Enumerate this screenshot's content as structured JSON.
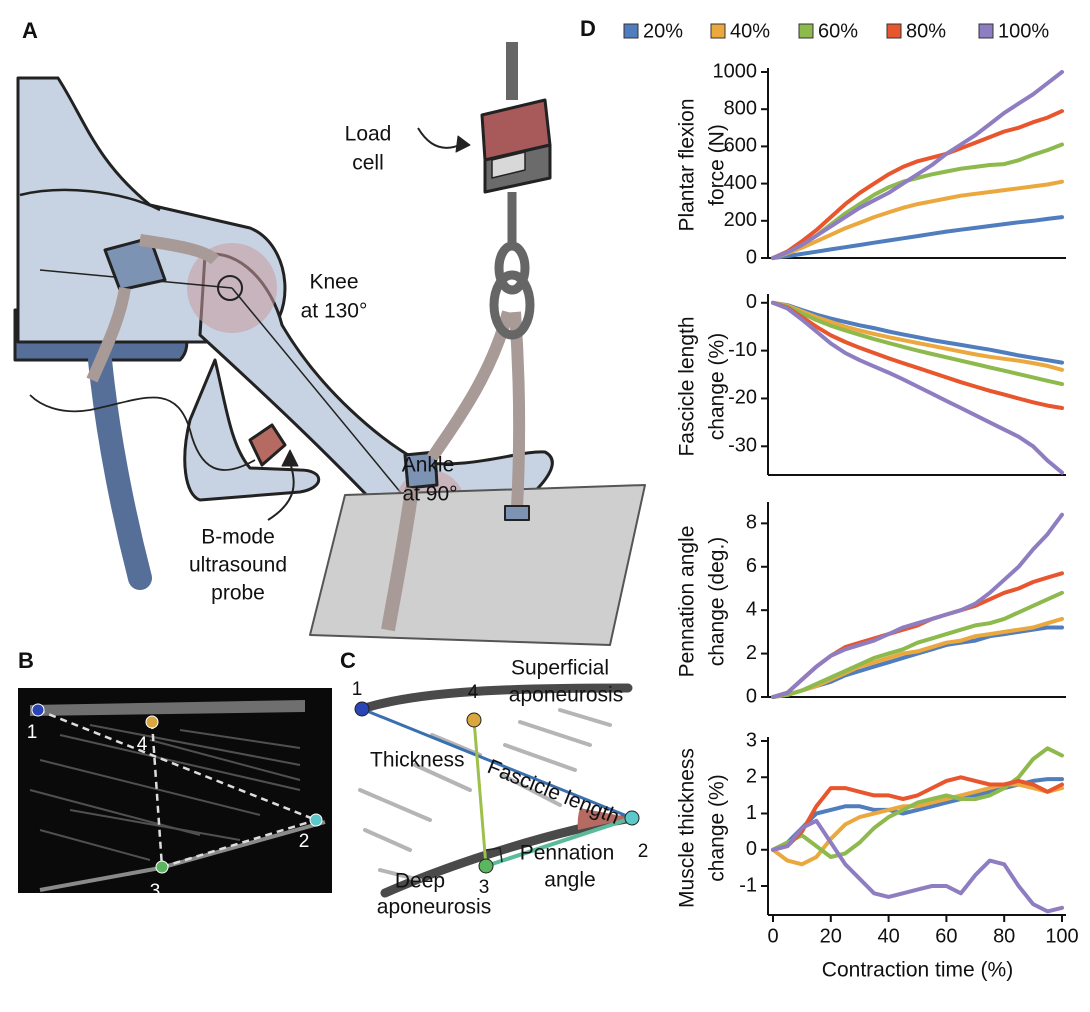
{
  "panel_labels": [
    "A",
    "B",
    "C",
    "D"
  ],
  "panel_a": {
    "load_cell": [
      "Load",
      "cell"
    ],
    "knee": [
      "Knee",
      "at 130°"
    ],
    "ankle": [
      "Ankle",
      "at 90°"
    ],
    "probe": [
      "B-mode",
      "ultrasound",
      "probe"
    ]
  },
  "panel_b": {
    "points": [
      "1",
      "2",
      "3",
      "4"
    ]
  },
  "panel_c": {
    "points": [
      "1",
      "2",
      "3",
      "4"
    ],
    "superficial": [
      "Superficial",
      "aponeurosis"
    ],
    "thickness": "Thickness",
    "fascicle": "Fascicle length",
    "pennation": [
      "Pennation",
      "angle"
    ],
    "deep": [
      "Deep",
      "aponeurosis"
    ]
  },
  "chart_data": [
    {
      "type": "line",
      "ylabel": [
        "Plantar flexion",
        "force (N)"
      ],
      "x": [
        0,
        5,
        10,
        15,
        20,
        25,
        30,
        35,
        40,
        45,
        50,
        55,
        60,
        65,
        70,
        75,
        80,
        85,
        90,
        95,
        100
      ],
      "xlim": [
        0,
        100
      ],
      "ylim": [
        0,
        1000
      ],
      "yticks": [
        0,
        200,
        400,
        600,
        800,
        1000
      ],
      "series": [
        {
          "name": "20%",
          "color": "#4f7dbd",
          "values": [
            0,
            10,
            22,
            34,
            46,
            58,
            70,
            82,
            94,
            106,
            118,
            130,
            142,
            152,
            162,
            172,
            182,
            192,
            200,
            210,
            220
          ]
        },
        {
          "name": "40%",
          "color": "#eaa83f",
          "values": [
            0,
            25,
            55,
            90,
            125,
            160,
            190,
            220,
            245,
            270,
            290,
            305,
            320,
            335,
            345,
            355,
            365,
            375,
            385,
            395,
            410
          ]
        },
        {
          "name": "60%",
          "color": "#8db94d",
          "values": [
            0,
            30,
            70,
            120,
            180,
            240,
            290,
            340,
            380,
            410,
            430,
            450,
            465,
            480,
            490,
            500,
            505,
            525,
            555,
            580,
            610
          ]
        },
        {
          "name": "80%",
          "color": "#e8562e",
          "values": [
            0,
            35,
            90,
            150,
            220,
            290,
            350,
            400,
            450,
            490,
            520,
            540,
            560,
            590,
            620,
            650,
            680,
            700,
            730,
            755,
            790
          ]
        },
        {
          "name": "100%",
          "color": "#8f7dc2",
          "values": [
            0,
            30,
            70,
            120,
            170,
            220,
            270,
            310,
            350,
            400,
            450,
            500,
            560,
            610,
            660,
            720,
            780,
            830,
            880,
            940,
            1000
          ]
        }
      ]
    },
    {
      "type": "line",
      "ylabel": [
        "Fascicle length",
        "change (%)"
      ],
      "x": [
        0,
        5,
        10,
        15,
        20,
        25,
        30,
        35,
        40,
        45,
        50,
        55,
        60,
        65,
        70,
        75,
        80,
        85,
        90,
        95,
        100
      ],
      "xlim": [
        0,
        100
      ],
      "ylim": [
        -36,
        1
      ],
      "yticks": [
        0,
        -10,
        -20,
        -30
      ],
      "series": [
        {
          "color": "#4f7dbd",
          "values": [
            0,
            -0.5,
            -1.5,
            -2.5,
            -3.3,
            -4,
            -4.7,
            -5.3,
            -6,
            -6.6,
            -7.2,
            -7.8,
            -8.3,
            -8.8,
            -9.3,
            -9.8,
            -10.4,
            -11,
            -11.5,
            -12,
            -12.5
          ]
        },
        {
          "color": "#eaa83f",
          "values": [
            0,
            -0.6,
            -1.8,
            -3,
            -4,
            -5,
            -5.8,
            -6.5,
            -7.2,
            -7.8,
            -8.4,
            -9,
            -9.6,
            -10.2,
            -10.8,
            -11.3,
            -11.7,
            -12.1,
            -12.6,
            -13.2,
            -14
          ]
        },
        {
          "color": "#8db94d",
          "values": [
            0,
            -0.8,
            -2.2,
            -3.6,
            -4.8,
            -5.8,
            -6.7,
            -7.6,
            -8.4,
            -9.2,
            -10,
            -10.7,
            -11.4,
            -12.1,
            -12.8,
            -13.5,
            -14.2,
            -14.9,
            -15.6,
            -16.3,
            -17
          ]
        },
        {
          "color": "#e8562e",
          "values": [
            0,
            -1,
            -3,
            -5,
            -6.8,
            -8.2,
            -9.4,
            -10.5,
            -11.6,
            -12.6,
            -13.6,
            -14.6,
            -15.6,
            -16.6,
            -17.5,
            -18.4,
            -19.2,
            -20,
            -20.8,
            -21.5,
            -22
          ]
        },
        {
          "color": "#8f7dc2",
          "values": [
            0,
            -1.2,
            -3.5,
            -6,
            -8.5,
            -10.5,
            -12,
            -13.3,
            -14.6,
            -16,
            -17.5,
            -19,
            -20.5,
            -22,
            -23.5,
            -25,
            -26.5,
            -28,
            -30,
            -33,
            -35.5
          ]
        }
      ]
    },
    {
      "type": "line",
      "ylabel": [
        "Pennation angle",
        "change (deg.)"
      ],
      "x": [
        0,
        5,
        10,
        15,
        20,
        25,
        30,
        35,
        40,
        45,
        50,
        55,
        60,
        65,
        70,
        75,
        80,
        85,
        90,
        95,
        100
      ],
      "xlim": [
        0,
        100
      ],
      "ylim": [
        0,
        8.8
      ],
      "yticks": [
        0,
        2,
        4,
        6,
        8
      ],
      "series": [
        {
          "color": "#4f7dbd",
          "values": [
            0,
            0.1,
            0.3,
            0.5,
            0.7,
            1,
            1.2,
            1.4,
            1.6,
            1.8,
            2,
            2.2,
            2.4,
            2.5,
            2.6,
            2.8,
            2.9,
            3,
            3.1,
            3.2,
            3.2
          ]
        },
        {
          "color": "#eaa83f",
          "values": [
            0,
            0.1,
            0.3,
            0.5,
            0.8,
            1.1,
            1.4,
            1.6,
            1.8,
            2,
            2.1,
            2.3,
            2.5,
            2.6,
            2.8,
            2.9,
            3,
            3.1,
            3.2,
            3.4,
            3.6
          ]
        },
        {
          "color": "#8db94d",
          "values": [
            0,
            0.1,
            0.3,
            0.6,
            0.9,
            1.2,
            1.5,
            1.8,
            2,
            2.2,
            2.5,
            2.7,
            2.9,
            3.1,
            3.3,
            3.4,
            3.6,
            3.9,
            4.2,
            4.5,
            4.8
          ]
        },
        {
          "color": "#e8562e",
          "values": [
            0,
            0.2,
            0.8,
            1.4,
            1.9,
            2.3,
            2.5,
            2.7,
            2.9,
            3.1,
            3.3,
            3.6,
            3.8,
            4,
            4.2,
            4.5,
            4.8,
            5,
            5.3,
            5.5,
            5.7
          ]
        },
        {
          "color": "#8f7dc2",
          "values": [
            0,
            0.2,
            0.8,
            1.4,
            1.9,
            2.2,
            2.4,
            2.6,
            2.9,
            3.2,
            3.4,
            3.6,
            3.8,
            4,
            4.3,
            4.8,
            5.4,
            6,
            6.8,
            7.5,
            8.4
          ]
        }
      ]
    },
    {
      "type": "line",
      "ylabel": [
        "Muscle thickness",
        "change (%)"
      ],
      "xlabel": "Contraction time (%)",
      "x": [
        0,
        5,
        10,
        15,
        20,
        25,
        30,
        35,
        40,
        45,
        50,
        55,
        60,
        65,
        70,
        75,
        80,
        85,
        90,
        95,
        100
      ],
      "xlim": [
        0,
        100
      ],
      "xticks": [
        0,
        20,
        40,
        60,
        80,
        100
      ],
      "ylim": [
        -1.8,
        3
      ],
      "yticks": [
        3,
        2,
        1,
        0,
        -1
      ],
      "series": [
        {
          "color": "#4f7dbd",
          "values": [
            0,
            0.2,
            0.6,
            1,
            1.1,
            1.2,
            1.2,
            1.1,
            1.1,
            1,
            1.1,
            1.2,
            1.3,
            1.4,
            1.5,
            1.6,
            1.7,
            1.8,
            1.9,
            1.95,
            1.95
          ]
        },
        {
          "color": "#eaa83f",
          "values": [
            0,
            -0.3,
            -0.4,
            -0.2,
            0.3,
            0.7,
            0.9,
            1,
            1.1,
            1.2,
            1.2,
            1.3,
            1.4,
            1.5,
            1.6,
            1.7,
            1.8,
            1.8,
            1.7,
            1.6,
            1.7
          ]
        },
        {
          "color": "#8db94d",
          "values": [
            0,
            0.2,
            0.4,
            0.1,
            -0.2,
            -0.1,
            0.2,
            0.6,
            0.9,
            1.1,
            1.3,
            1.4,
            1.5,
            1.4,
            1.4,
            1.5,
            1.7,
            2,
            2.5,
            2.8,
            2.6
          ]
        },
        {
          "color": "#e8562e",
          "values": [
            0,
            0.1,
            0.5,
            1.2,
            1.7,
            1.7,
            1.6,
            1.5,
            1.5,
            1.4,
            1.5,
            1.7,
            1.9,
            2,
            1.9,
            1.8,
            1.8,
            1.9,
            1.8,
            1.6,
            1.8
          ]
        },
        {
          "color": "#8f7dc2",
          "values": [
            0,
            0.1,
            0.6,
            0.8,
            0.2,
            -0.4,
            -0.8,
            -1.2,
            -1.3,
            -1.2,
            -1.1,
            -1,
            -1,
            -1.2,
            -0.7,
            -0.3,
            -0.4,
            -1,
            -1.5,
            -1.7,
            -1.6
          ]
        }
      ]
    }
  ]
}
